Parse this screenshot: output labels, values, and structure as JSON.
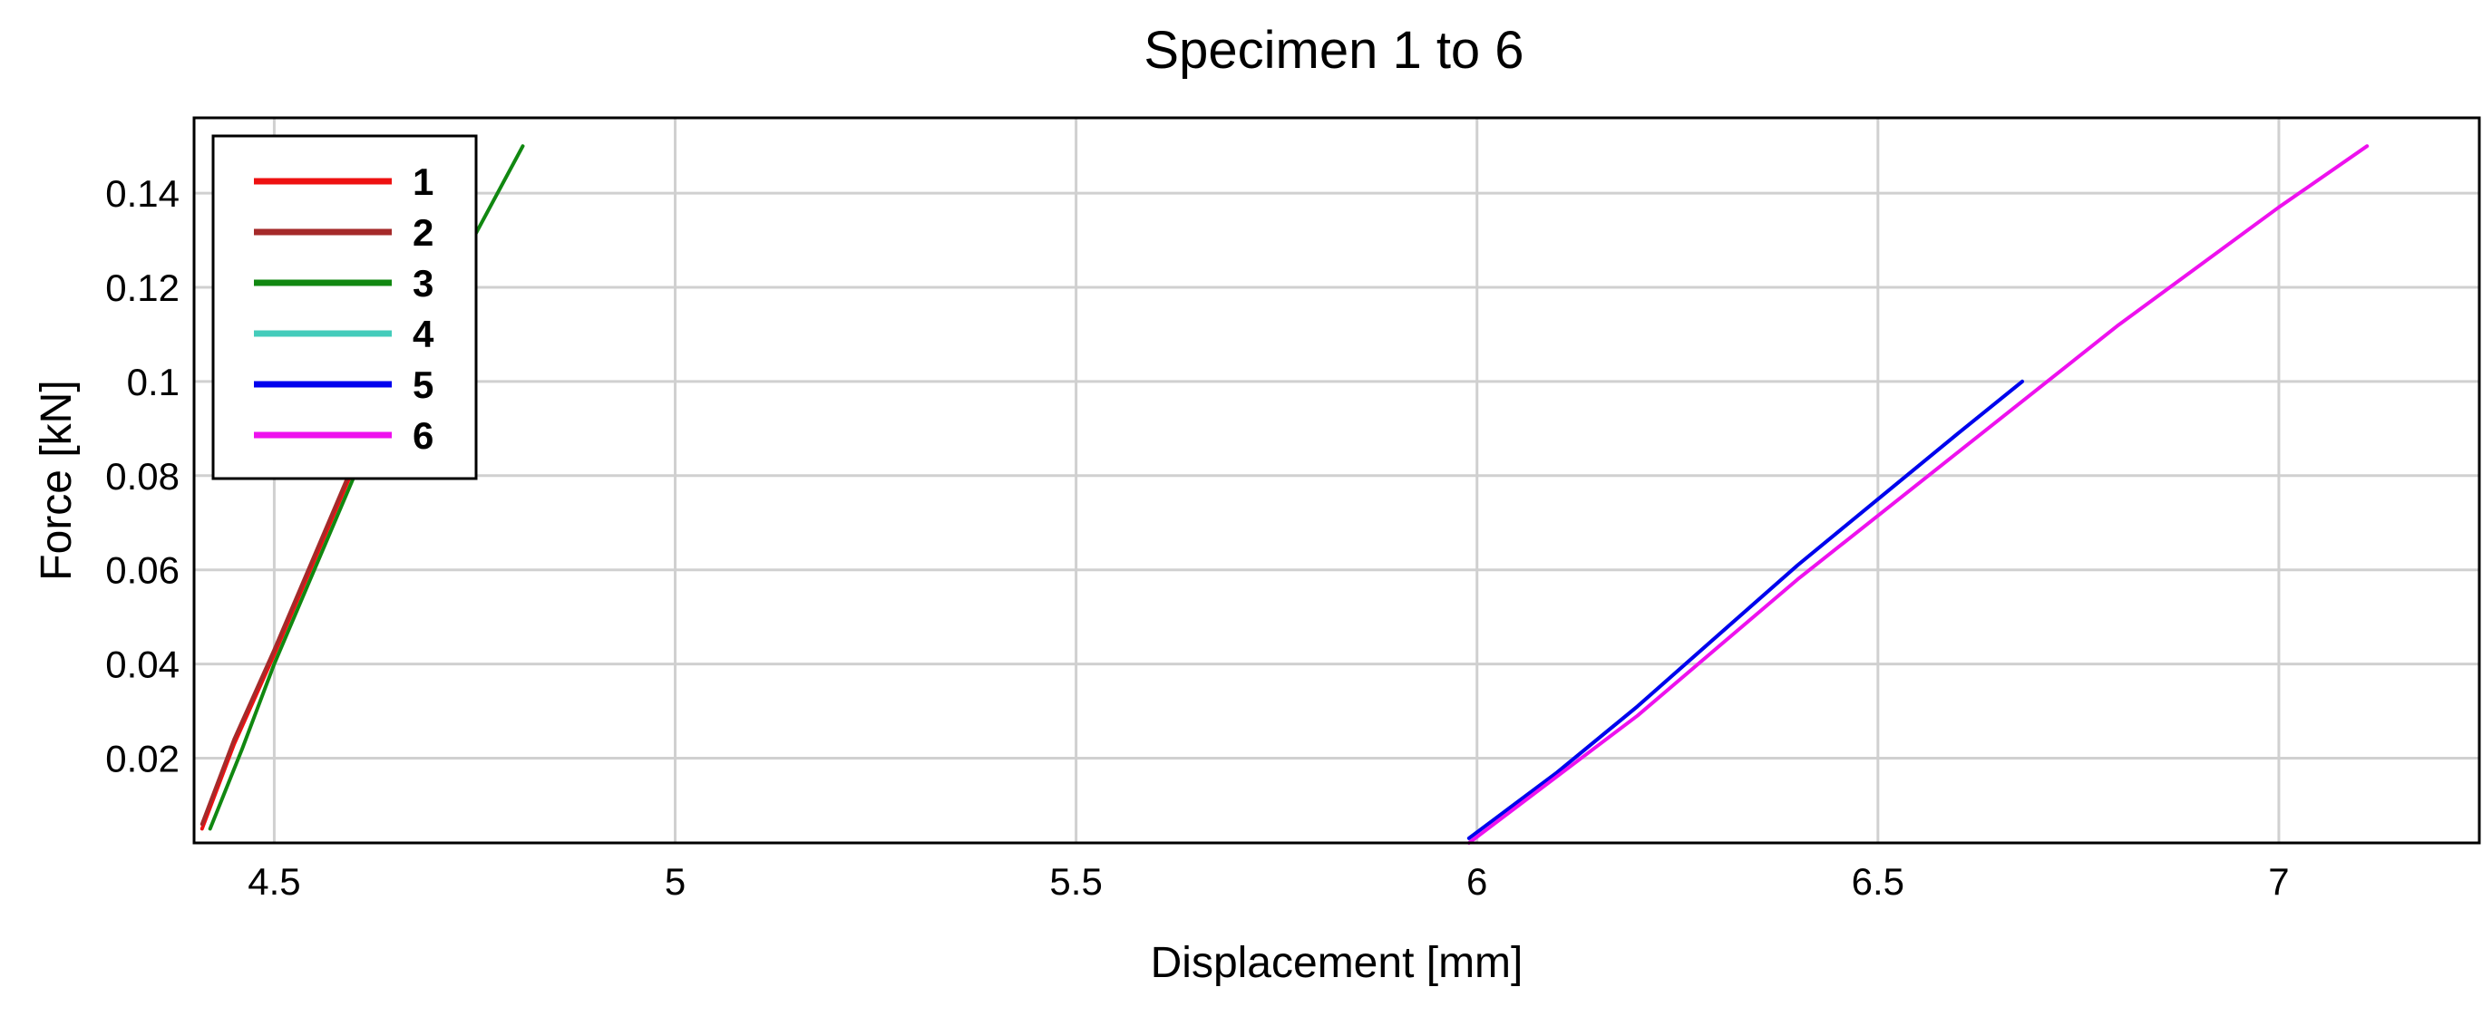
{
  "chart_data": {
    "type": "line",
    "title": "Specimen 1 to 6",
    "xlabel": "Displacement [mm]",
    "ylabel": "Force [kN]",
    "xlim": [
      4.4,
      7.25
    ],
    "ylim": [
      0.002,
      0.156
    ],
    "x_ticks": [
      4.5,
      5,
      5.5,
      6,
      6.5,
      7
    ],
    "x_tick_labels": [
      "4.5",
      "5",
      "5.5",
      "6",
      "6.5",
      "7"
    ],
    "y_ticks": [
      0.02,
      0.04,
      0.06,
      0.08,
      0.1,
      0.12,
      0.14
    ],
    "y_tick_labels": [
      "0.02",
      "0.04",
      "0.06",
      "0.08",
      "0.1",
      "0.12",
      "0.14"
    ],
    "grid": true,
    "legend_position": "top-left",
    "series": [
      {
        "name": "1",
        "color": "#ee1111",
        "x": [
          4.41,
          4.45,
          4.5,
          4.55,
          4.6,
          4.63
        ],
        "y": [
          0.005,
          0.023,
          0.042,
          0.062,
          0.082,
          0.092
        ]
      },
      {
        "name": "2",
        "color": "#a52a2a",
        "x": [
          4.41,
          4.45,
          4.5,
          4.55,
          4.6,
          4.63
        ],
        "y": [
          0.006,
          0.024,
          0.043,
          0.063,
          0.083,
          0.093
        ]
      },
      {
        "name": "3",
        "color": "#118811",
        "x": [
          4.42,
          4.46,
          4.5,
          4.55,
          4.6,
          4.65,
          4.7,
          4.75,
          4.81
        ],
        "y": [
          0.005,
          0.022,
          0.04,
          0.06,
          0.08,
          0.098,
          0.116,
          0.131,
          0.15
        ]
      },
      {
        "name": "4",
        "color": "#44ccbb",
        "x": [
          5.99,
          6.1,
          6.2,
          6.3,
          6.4,
          6.5,
          6.6,
          6.68
        ],
        "y": [
          0.003,
          0.017,
          0.031,
          0.046,
          0.061,
          0.075,
          0.089,
          0.1
        ]
      },
      {
        "name": "5",
        "color": "#0000ee",
        "x": [
          5.99,
          6.1,
          6.2,
          6.3,
          6.4,
          6.5,
          6.6,
          6.68
        ],
        "y": [
          0.003,
          0.017,
          0.031,
          0.046,
          0.061,
          0.075,
          0.089,
          0.1
        ]
      },
      {
        "name": "6",
        "color": "#ee11ee",
        "x": [
          5.99,
          6.2,
          6.4,
          6.6,
          6.8,
          7.0,
          7.11
        ],
        "y": [
          0.002,
          0.029,
          0.058,
          0.085,
          0.112,
          0.137,
          0.15
        ]
      }
    ]
  }
}
